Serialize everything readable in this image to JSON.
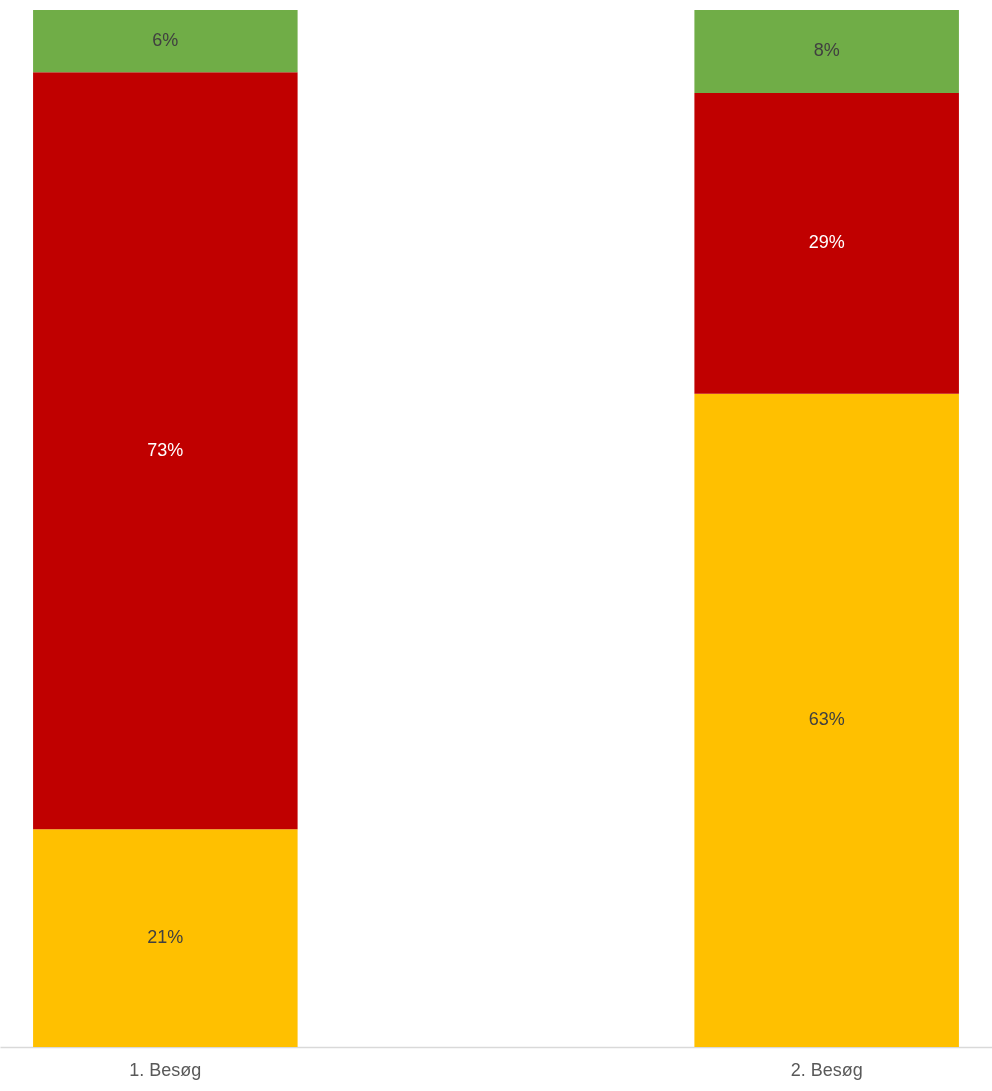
{
  "chart_data": {
    "type": "bar",
    "stacked": true,
    "grid": false,
    "categories": [
      "1. Besøg",
      "2. Besøg"
    ],
    "series": [
      {
        "color": "#ffc000",
        "values": [
          21,
          63
        ],
        "value_labels": [
          "21%",
          "63%"
        ]
      },
      {
        "color": "#c00000",
        "values": [
          73,
          29
        ],
        "value_labels": [
          "73%",
          "29%"
        ]
      },
      {
        "color": "#70ad47",
        "values": [
          6,
          8
        ],
        "value_labels": [
          "6%",
          "8%"
        ]
      }
    ]
  }
}
